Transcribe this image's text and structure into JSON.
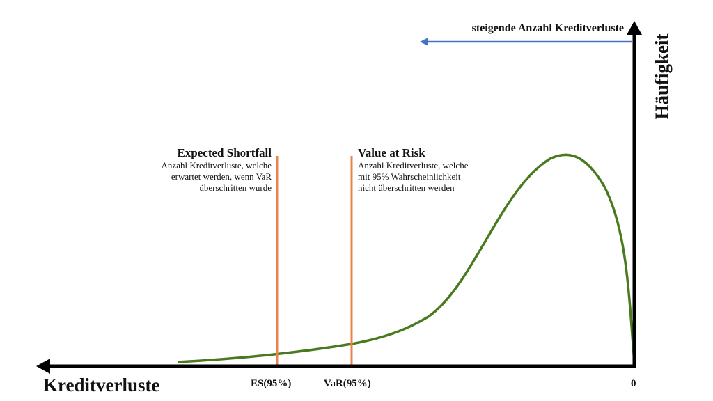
{
  "top_arrow_label": "steigende Anzahl Kreditverluste",
  "y_axis_label": "Häufigkeit",
  "x_axis_label": "Kreditverluste",
  "origin_label": "0",
  "es": {
    "title": "Expected Shortfall",
    "desc_lines": [
      "Anzahl Kreditverluste, welche",
      "erwartet werden, wenn VaR",
      "überschritten wurde"
    ],
    "tick_label": "ES(95%)"
  },
  "var": {
    "title": "Value at Risk",
    "desc_lines": [
      "Anzahl Kreditverluste, welche",
      "mit 95% Wahrscheinlichkeit",
      "nicht überschritten werden"
    ],
    "tick_label": "VaR(95%)"
  },
  "colors": {
    "axes": "#000000",
    "curve": "#4a7a1e",
    "marker_lines": "#e8844a",
    "top_arrow": "#4472c4"
  }
}
